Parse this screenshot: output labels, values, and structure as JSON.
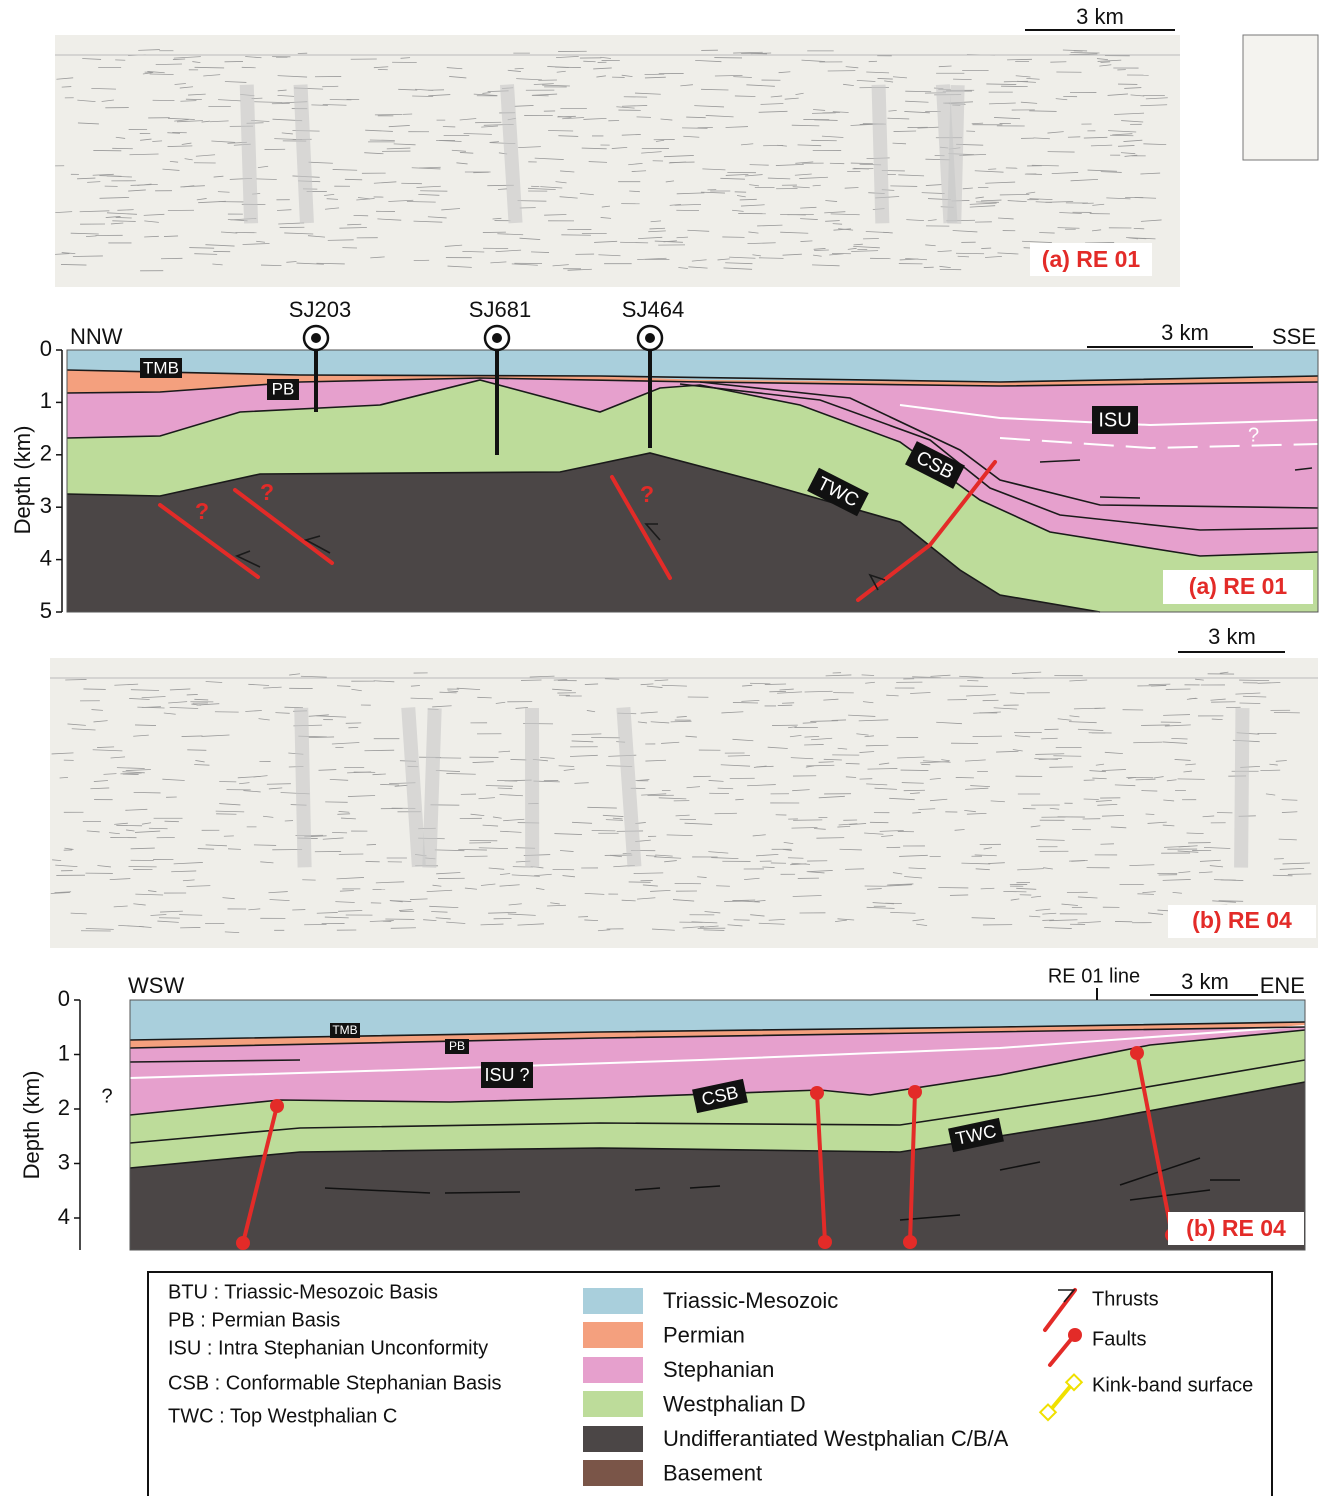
{
  "seismic_a": {
    "scale": "3 km",
    "label": "(a) RE 01"
  },
  "section_a": {
    "left_end": "NNW",
    "right_end": "SSE",
    "scale": "3 km",
    "axis_title": "Depth (km)",
    "ticks": [
      0,
      1,
      2,
      3,
      4,
      5
    ],
    "wells": [
      "SJ203",
      "SJ681",
      "SJ464"
    ],
    "units": {
      "tmb": "TMB",
      "pb": "PB",
      "isu": "ISU",
      "csb": "CSB",
      "twc": "TWC"
    },
    "question_marks": [
      "?",
      "?",
      "?",
      "?"
    ],
    "label": "(a) RE 01"
  },
  "seismic_b": {
    "scale": "3 km",
    "label": "(b) RE 04"
  },
  "section_b": {
    "left_end": "WSW",
    "right_end": "ENE",
    "line_marker": "RE 01 line",
    "scale": "3 km",
    "axis_title": "Depth (km)",
    "ticks": [
      0,
      1,
      2,
      3,
      4
    ],
    "question_mark": "?",
    "units": {
      "tmb": "TMB",
      "pb": "PB",
      "isu": "ISU ?",
      "csb": "CSB",
      "twc": "TWC"
    },
    "label": "(b) RE 04"
  },
  "legend": {
    "abbreviations": [
      "BTU : Triassic-Mesozoic Basis",
      "PB : Permian Basis",
      "ISU : Intra Stephanian Unconformity",
      "CSB : Conformable Stephanian Basis",
      "TWC : Top Westphalian C"
    ],
    "formations": [
      "Triassic-Mesozoic",
      "Permian",
      "Stephanian",
      "Westphalian D",
      "Undifferantiated Westphalian C/B/A",
      "Basement"
    ],
    "symbols": [
      "Thrusts",
      "Faults",
      "Kink-band surface"
    ]
  }
}
